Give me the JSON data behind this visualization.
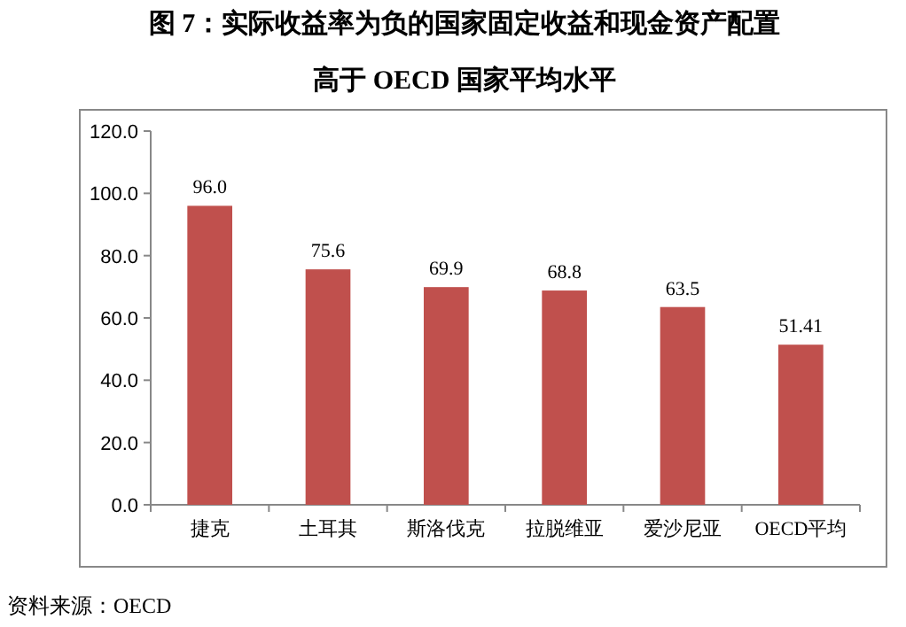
{
  "chart_data": {
    "type": "bar",
    "title": "图 7：实际收益率为负的国家固定收益和现金资产配置",
    "subtitle": "高于 OECD 国家平均水平",
    "categories": [
      "捷克",
      "土耳其",
      "斯洛伐克",
      "拉脱维亚",
      "爱沙尼亚",
      "OECD平均"
    ],
    "values": [
      96.0,
      75.6,
      69.9,
      68.8,
      63.5,
      51.41
    ],
    "value_labels": [
      "96.0",
      "75.6",
      "69.9",
      "68.8",
      "63.5",
      "51.41"
    ],
    "color": "#c0504d",
    "ylim": [
      0,
      120
    ],
    "yticks": [
      {
        "value": 0,
        "label": "0.0"
      },
      {
        "value": 20,
        "label": "20.0"
      },
      {
        "value": 40,
        "label": "40.0"
      },
      {
        "value": 60,
        "label": "60.0"
      },
      {
        "value": 80,
        "label": "80.0"
      },
      {
        "value": 100,
        "label": "100.0"
      },
      {
        "value": 120,
        "label": "120.0"
      }
    ],
    "grid": false,
    "annotations": [
      "资料来源：OECD"
    ]
  }
}
